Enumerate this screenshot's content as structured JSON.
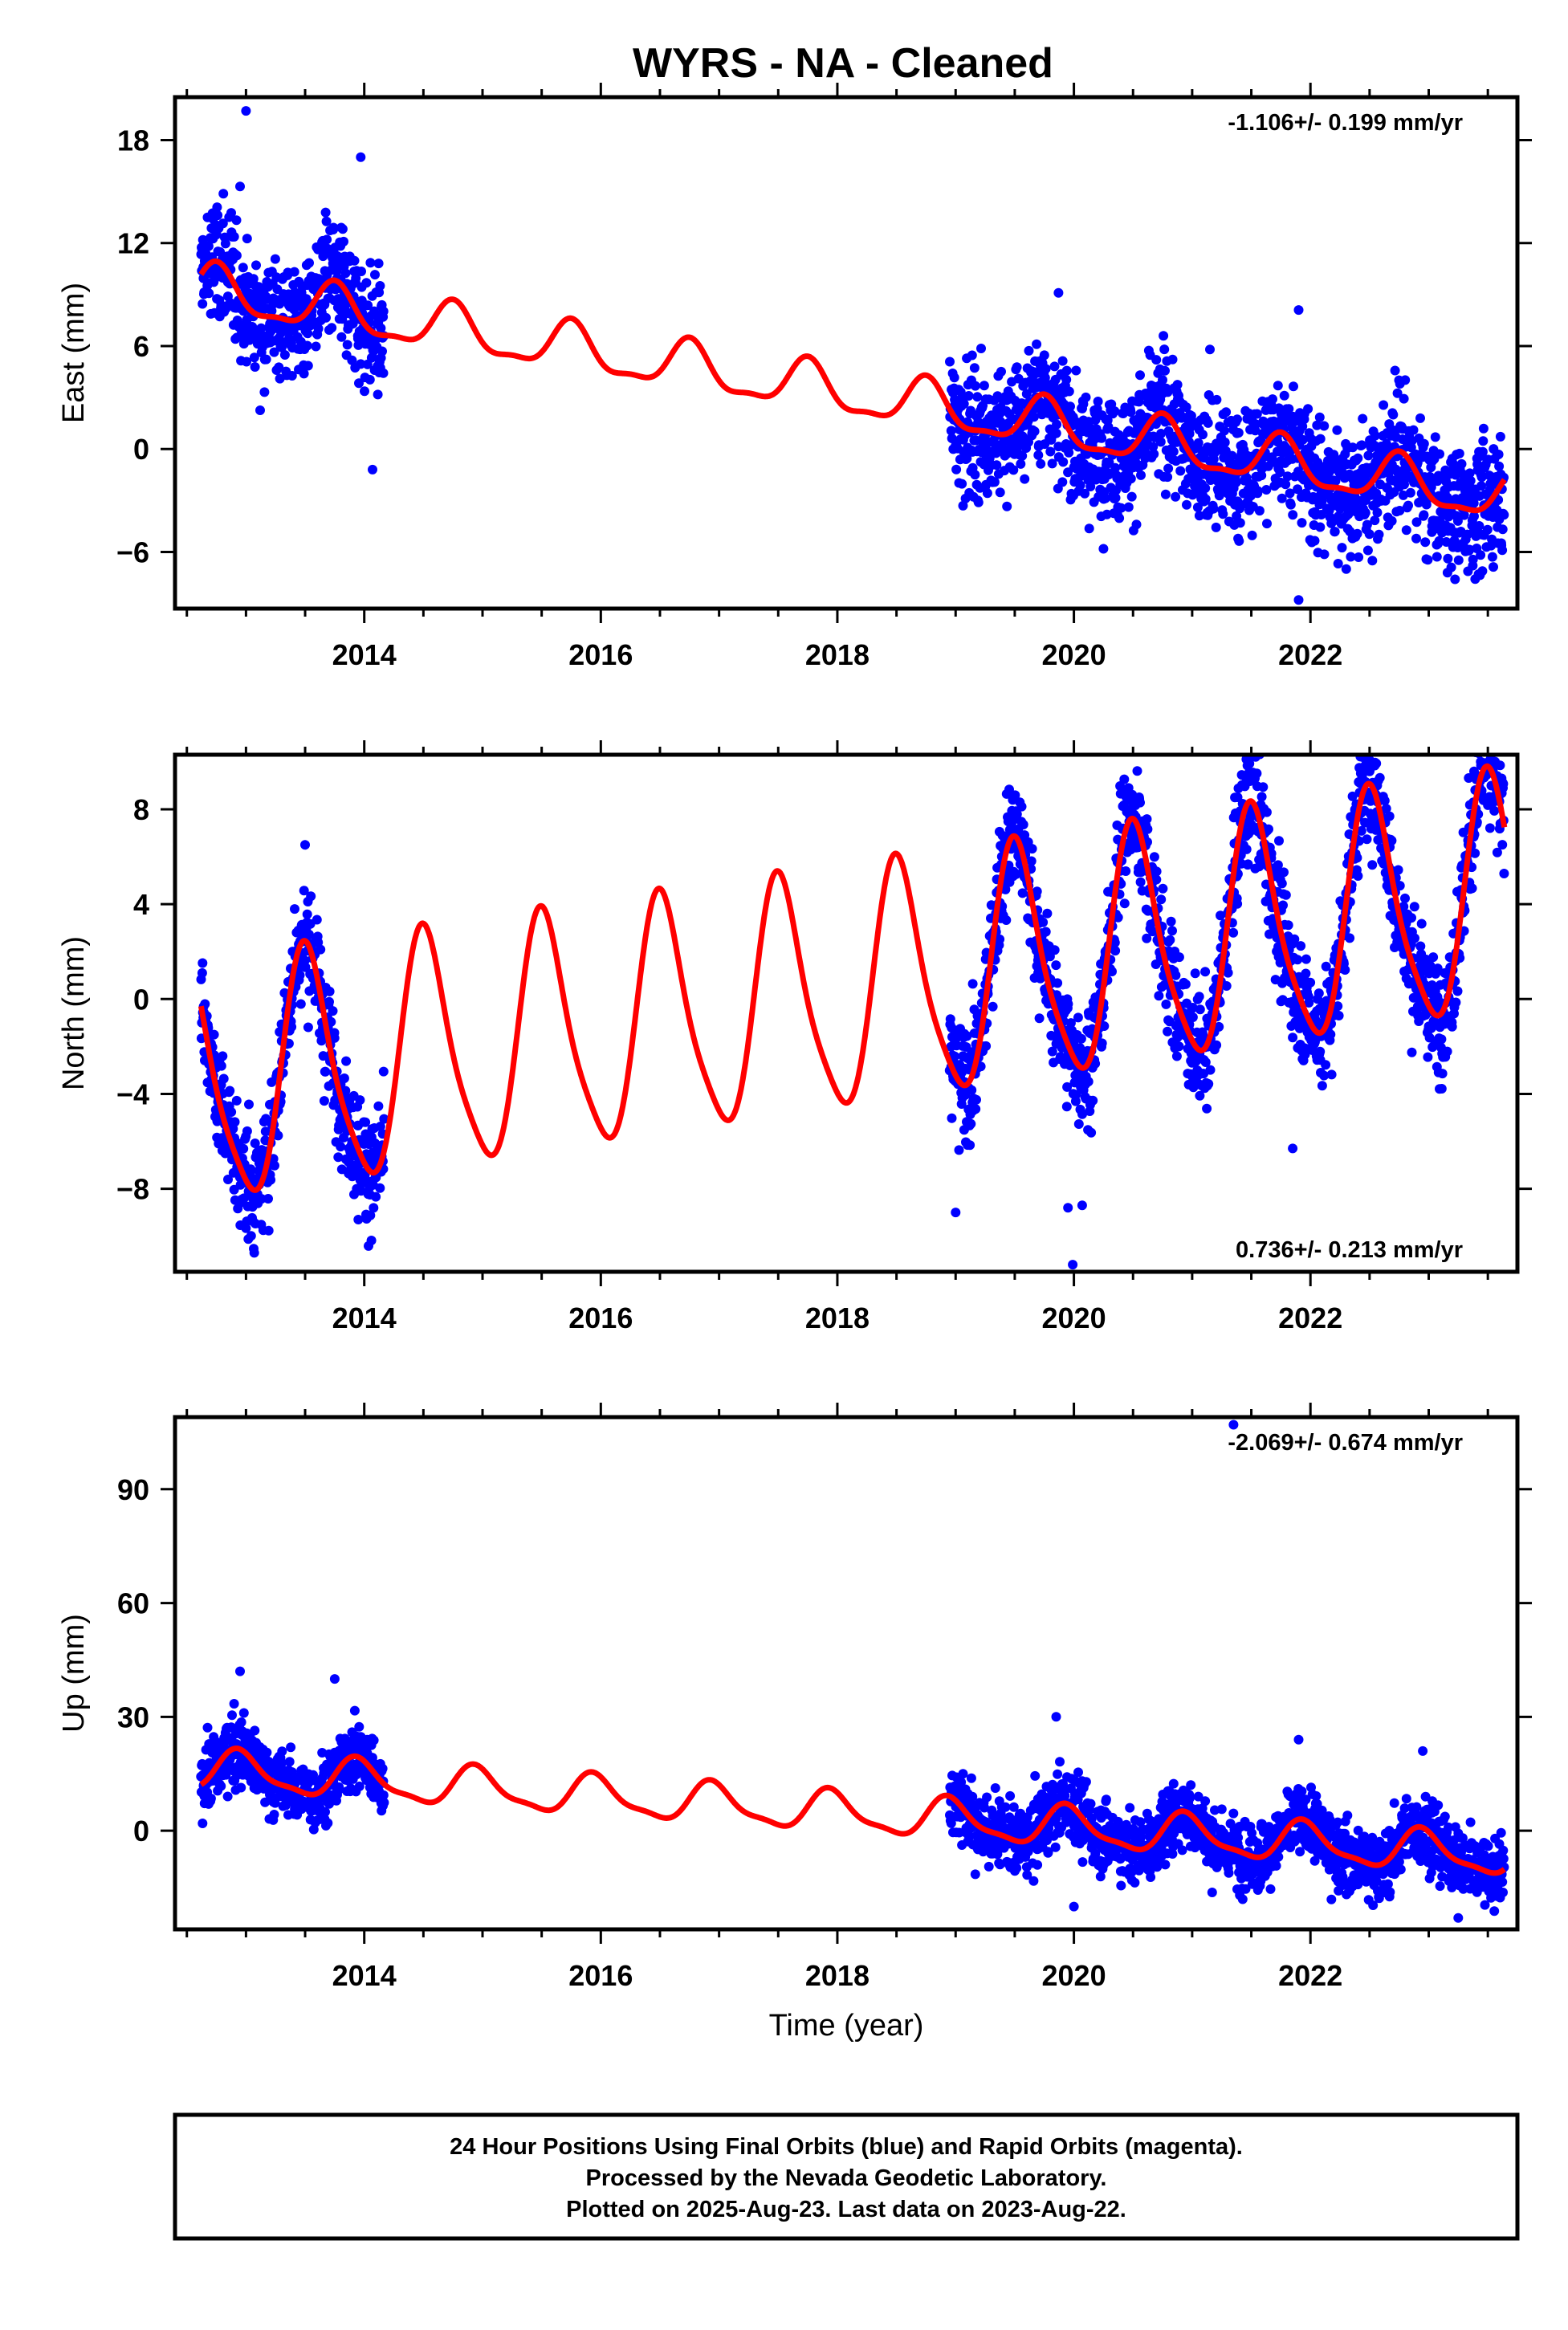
{
  "title": "WYRS  - NA - Cleaned",
  "footer": {
    "line1": "24 Hour Positions Using Final Orbits (blue) and Rapid Orbits (magenta).",
    "line2": "Processed by the Nevada Geodetic Laboratory.",
    "line3": "Plotted on 2025-Aug-23. Last data on 2023-Aug-22."
  },
  "colors": {
    "data": "#0000ff",
    "model": "#ff0000",
    "axis": "#000000"
  },
  "chart_data": [
    {
      "type": "scatter",
      "ylabel": "East (mm)",
      "xlabel": "",
      "rate_text": "-1.106+/- 0.199 mm/yr",
      "rate_position": "top-right",
      "xlim": [
        2012.4,
        2023.75
      ],
      "ylim": [
        -9.3,
        20.5
      ],
      "xticks": [
        2014,
        2016,
        2018,
        2020,
        2022
      ],
      "yticks": [
        -6,
        0,
        6,
        12,
        18
      ],
      "grid": false,
      "series": [
        {
          "type": "scatter",
          "segments": [
            {
              "x_range": [
                2012.62,
                2014.17
              ]
            },
            {
              "x_range": [
                2018.95,
                2023.64
              ]
            }
          ],
          "trend": {
            "ref_year": 2012.6,
            "start": 9.3,
            "slope": -1.106,
            "annual_amp": 1.35,
            "annual_peak": 0.75,
            "semiannual_amp": 0.45,
            "semiannual_peak": 0.25
          },
          "noise_mm": 1.8,
          "outliers": [
            [
              2013.0,
              19.7
            ],
            [
              2013.97,
              17.0
            ],
            [
              2012.95,
              15.3
            ],
            [
              2014.07,
              -1.2
            ],
            [
              2019.87,
              9.1
            ],
            [
              2021.9,
              8.1
            ],
            [
              2021.9,
              -8.8
            ],
            [
              2021.15,
              5.8
            ],
            [
              2022.7,
              2.0
            ]
          ]
        },
        {
          "type": "line",
          "name": "model",
          "trend": {
            "ref_year": 2012.6,
            "start": 9.3,
            "slope": -1.106,
            "annual_amp": 1.35,
            "annual_peak": 0.75,
            "semiannual_amp": 0.45,
            "semiannual_peak": 0.25
          },
          "x_range": [
            2012.62,
            2023.64
          ]
        }
      ]
    },
    {
      "type": "scatter",
      "ylabel": "North (mm)",
      "xlabel": "",
      "rate_text": "0.736+/- 0.213 mm/yr",
      "rate_position": "bottom-right",
      "xlim": [
        2012.4,
        2023.75
      ],
      "ylim": [
        -11.5,
        10.3
      ],
      "xticks": [
        2014,
        2016,
        2018,
        2020,
        2022
      ],
      "yticks": [
        -8,
        -4,
        0,
        4,
        8
      ],
      "grid": false,
      "series": [
        {
          "type": "scatter",
          "segments": [
            {
              "x_range": [
                2012.62,
                2014.17
              ]
            },
            {
              "x_range": [
                2018.95,
                2023.64
              ]
            }
          ],
          "trend": {
            "ref_year": 2012.6,
            "start": -3.8,
            "slope": 0.736,
            "annual_amp": 4.9,
            "annual_peak": 0.52,
            "semiannual_amp": 0.9,
            "semiannual_peak": 0.45
          },
          "noise_mm": 1.2,
          "outliers": [
            [
              2019.99,
              -11.2
            ],
            [
              2019.95,
              -8.8
            ],
            [
              2020.07,
              -8.7
            ],
            [
              2019.0,
              -9.0
            ],
            [
              2022.5,
              9.6
            ],
            [
              2021.85,
              -6.3
            ],
            [
              2013.95,
              -9.3
            ],
            [
              2013.5,
              6.5
            ]
          ]
        },
        {
          "type": "line",
          "name": "model",
          "trend": {
            "ref_year": 2012.6,
            "start": -3.8,
            "slope": 0.736,
            "annual_amp": 4.9,
            "annual_peak": 0.52,
            "semiannual_amp": 0.9,
            "semiannual_peak": 0.45
          },
          "x_range": [
            2012.62,
            2023.64
          ]
        }
      ]
    },
    {
      "type": "scatter",
      "ylabel": "Up (mm)",
      "xlabel": "Time (year)",
      "rate_text": "-2.069+/- 0.674 mm/yr",
      "rate_position": "top-right",
      "xlim": [
        2012.4,
        2023.75
      ],
      "ylim": [
        -26,
        109
      ],
      "xticks": [
        2014,
        2016,
        2018,
        2020,
        2022
      ],
      "yticks": [
        0,
        30,
        60,
        90
      ],
      "grid": false,
      "series": [
        {
          "type": "scatter",
          "segments": [
            {
              "x_range": [
                2012.62,
                2014.17
              ]
            },
            {
              "x_range": [
                2018.95,
                2023.64
              ]
            }
          ],
          "trend": {
            "ref_year": 2012.6,
            "start": 16.0,
            "slope": -2.069,
            "annual_amp": 5.0,
            "annual_peak": 0.95,
            "semiannual_amp": 1.5,
            "semiannual_peak": 0.4
          },
          "noise_mm": 4.5,
          "outliers": [
            [
              2021.35,
              107
            ],
            [
              2012.95,
              42
            ],
            [
              2013.75,
              40
            ],
            [
              2019.85,
              30
            ],
            [
              2021.9,
              24
            ],
            [
              2022.95,
              21
            ],
            [
              2023.25,
              -23
            ],
            [
              2020.0,
              -20
            ]
          ]
        },
        {
          "type": "line",
          "name": "model",
          "trend": {
            "ref_year": 2012.6,
            "start": 16.0,
            "slope": -2.069,
            "annual_amp": 5.0,
            "annual_peak": 0.95,
            "semiannual_amp": 1.5,
            "semiannual_peak": 0.4
          },
          "x_range": [
            2012.62,
            2023.64
          ]
        }
      ]
    }
  ]
}
